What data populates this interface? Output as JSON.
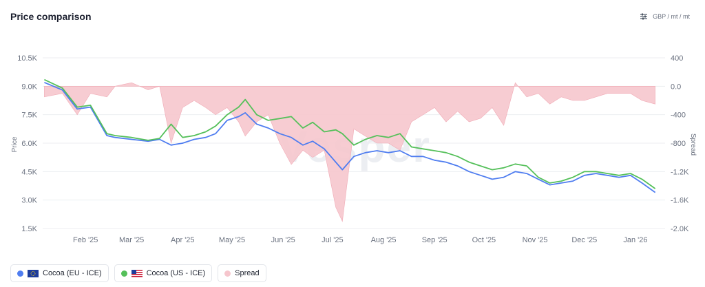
{
  "header": {
    "title": "Price comparison",
    "units": "GBP / mt / mt",
    "units_icon": "sliders-icon"
  },
  "watermark": "Vesper",
  "legend": [
    {
      "label": "Cocoa (EU - ICE)",
      "color": "#4f7df0",
      "flag": "eu-flag-icon"
    },
    {
      "label": "Cocoa (US - ICE)",
      "color": "#55c05a",
      "flag": "us-flag-icon"
    },
    {
      "label": "Spread",
      "color": "#f6c6cd",
      "flag": ""
    }
  ],
  "chart_data": {
    "type": "line",
    "title": "Price comparison",
    "xlabel": "",
    "ylabel": "Price",
    "y2label": "Spread",
    "ylim": [
      1500,
      10500
    ],
    "y2lim": [
      -2000,
      400
    ],
    "yticks": [
      "10.5K",
      "9.0K",
      "7.5K",
      "6.0K",
      "4.5K",
      "3.0K",
      "1.5K"
    ],
    "y2ticks": [
      "400",
      "0.0",
      "-400",
      "-800",
      "-1.2K",
      "-1.6K",
      "-2.0K"
    ],
    "months": [
      "Feb '25",
      "Mar '25",
      "Apr '25",
      "May '25",
      "Jun '25",
      "Jul '25",
      "Aug '25",
      "Sep '25",
      "Oct '25",
      "Nov '25",
      "Dec '25",
      "Jan '26"
    ],
    "x": [
      "2025-01-21",
      "2025-02-01",
      "2025-02-10",
      "2025-02-18",
      "2025-02-28",
      "2025-03-05",
      "2025-03-15",
      "2025-03-25",
      "2025-04-01",
      "2025-04-08",
      "2025-04-15",
      "2025-04-22",
      "2025-04-29",
      "2025-05-05",
      "2025-05-12",
      "2025-05-19",
      "2025-05-23",
      "2025-05-30",
      "2025-06-06",
      "2025-06-13",
      "2025-06-20",
      "2025-06-27",
      "2025-07-03",
      "2025-07-10",
      "2025-07-17",
      "2025-07-21",
      "2025-07-28",
      "2025-08-04",
      "2025-08-11",
      "2025-08-18",
      "2025-08-25",
      "2025-09-01",
      "2025-09-08",
      "2025-09-15",
      "2025-09-22",
      "2025-09-29",
      "2025-10-06",
      "2025-10-13",
      "2025-10-20",
      "2025-10-27",
      "2025-11-03",
      "2025-11-10",
      "2025-11-17",
      "2025-11-24",
      "2025-12-01",
      "2025-12-08",
      "2025-12-15",
      "2025-12-22",
      "2025-12-29",
      "2026-01-05",
      "2026-01-12",
      "2026-01-19",
      "2026-01-27"
    ],
    "series": [
      {
        "name": "Cocoa (EU - ICE)",
        "color": "#4f7df0",
        "type": "line",
        "values": [
          9200,
          8800,
          7800,
          7900,
          6400,
          6300,
          6200,
          6100,
          6200,
          5900,
          6000,
          6200,
          6300,
          6500,
          7200,
          7400,
          7600,
          7000,
          6800,
          6500,
          6300,
          5900,
          6100,
          5700,
          5000,
          4600,
          5300,
          5500,
          5600,
          5500,
          5600,
          5300,
          5300,
          5100,
          5000,
          4800,
          4500,
          4300,
          4100,
          4200,
          4500,
          4400,
          4100,
          3800,
          3900,
          4000,
          4300,
          4400,
          4300,
          4200,
          4300,
          3900,
          3400
        ]
      },
      {
        "name": "Cocoa (US - ICE)",
        "color": "#55c05a",
        "type": "line",
        "values": [
          9350,
          8900,
          7900,
          8000,
          6500,
          6400,
          6300,
          6150,
          6250,
          7000,
          6300,
          6400,
          6600,
          6900,
          7500,
          7900,
          8300,
          7500,
          7200,
          7300,
          7400,
          6800,
          7100,
          6600,
          6700,
          6500,
          5900,
          6200,
          6400,
          6300,
          6500,
          5800,
          5700,
          5600,
          5500,
          5300,
          5000,
          4800,
          4600,
          4700,
          4900,
          4800,
          4200,
          3900,
          4000,
          4200,
          4500,
          4500,
          4400,
          4300,
          4400,
          4100,
          3600
        ]
      },
      {
        "name": "Spread",
        "color": "#f6c6cd",
        "type": "area",
        "values": [
          -150,
          -100,
          -400,
          -100,
          -150,
          0,
          50,
          -50,
          0,
          -800,
          -300,
          -200,
          -300,
          -400,
          -300,
          -500,
          -700,
          -500,
          -400,
          -800,
          -1100,
          -900,
          -1000,
          -900,
          -1700,
          -1900,
          -600,
          -700,
          -800,
          -800,
          -900,
          -500,
          -400,
          -300,
          -500,
          -350,
          -500,
          -450,
          -300,
          -550,
          50,
          -150,
          -100,
          -250,
          -150,
          -200,
          -200,
          -150,
          -100,
          -100,
          -100,
          -200,
          -250
        ]
      }
    ]
  }
}
